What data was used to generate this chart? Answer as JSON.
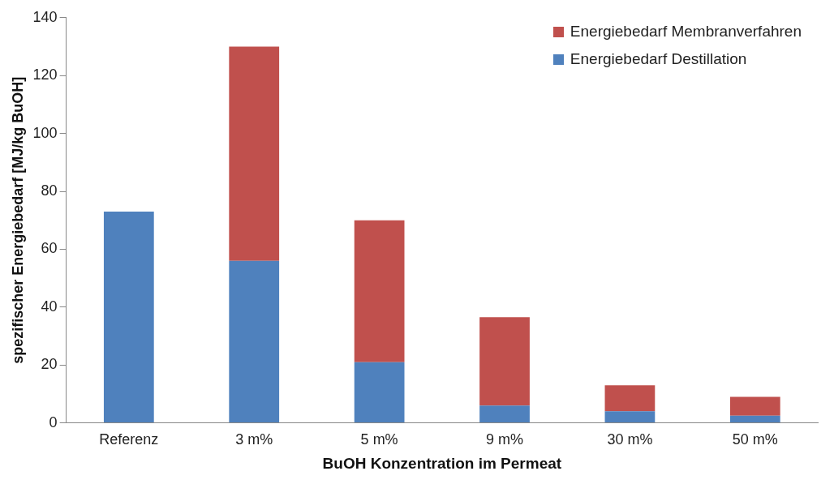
{
  "chart_data": {
    "type": "bar",
    "stacked": true,
    "xlabel": "BuOH Konzentration im Permeat",
    "ylabel": "spezifischer Energiebedarf [MJ/kg BuOH]",
    "categories": [
      "Referenz",
      "3 m%",
      "5 m%",
      "9 m%",
      "30 m%",
      "50 m%"
    ],
    "series": [
      {
        "name": "Energiebedarf Destillation",
        "color": "#4f81bd",
        "values": [
          73,
          56,
          21,
          6,
          4,
          2.5
        ]
      },
      {
        "name": "Energiebedarf Membranverfahren",
        "color": "#c0504d",
        "values": [
          null,
          74,
          49,
          30.5,
          9,
          6.5
        ]
      }
    ],
    "ylim": [
      0,
      140
    ],
    "yticks": [
      0,
      20,
      40,
      60,
      80,
      100,
      120,
      140
    ],
    "grid": false,
    "legend": "top right"
  }
}
